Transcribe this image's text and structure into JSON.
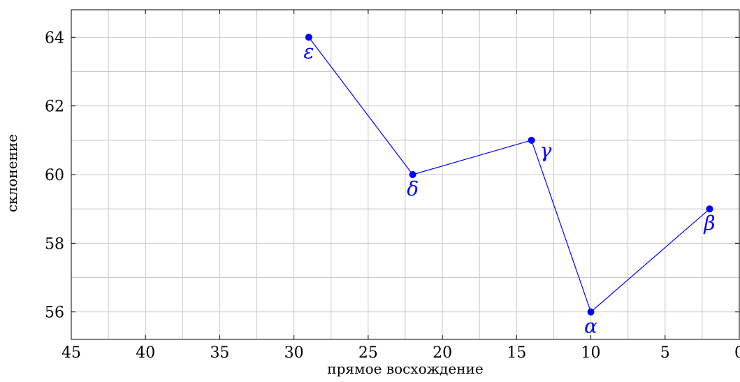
{
  "chart_data": {
    "type": "line",
    "title": "",
    "xlabel": "прямое восхождение",
    "ylabel": "склонение",
    "xlim": [
      45,
      0
    ],
    "ylim": [
      55.2,
      64.8
    ],
    "x_reversed": true,
    "x_ticks": [
      45,
      40,
      35,
      30,
      25,
      20,
      15,
      10,
      5,
      0
    ],
    "y_ticks": [
      56,
      58,
      60,
      62,
      64
    ],
    "x_minor_step": 2.5,
    "y_minor_step": 1,
    "grid": true,
    "series": [
      {
        "name": "",
        "color": "#0000ff",
        "points": [
          {
            "x": 29,
            "y": 64,
            "label": "ε",
            "label_pos": "below"
          },
          {
            "x": 22,
            "y": 60,
            "label": "δ",
            "label_pos": "below"
          },
          {
            "x": 14,
            "y": 61,
            "label": "γ",
            "label_pos": "below-right"
          },
          {
            "x": 10,
            "y": 56,
            "label": "α",
            "label_pos": "below"
          },
          {
            "x": 2,
            "y": 59,
            "label": "β",
            "label_pos": "below"
          }
        ]
      }
    ]
  }
}
